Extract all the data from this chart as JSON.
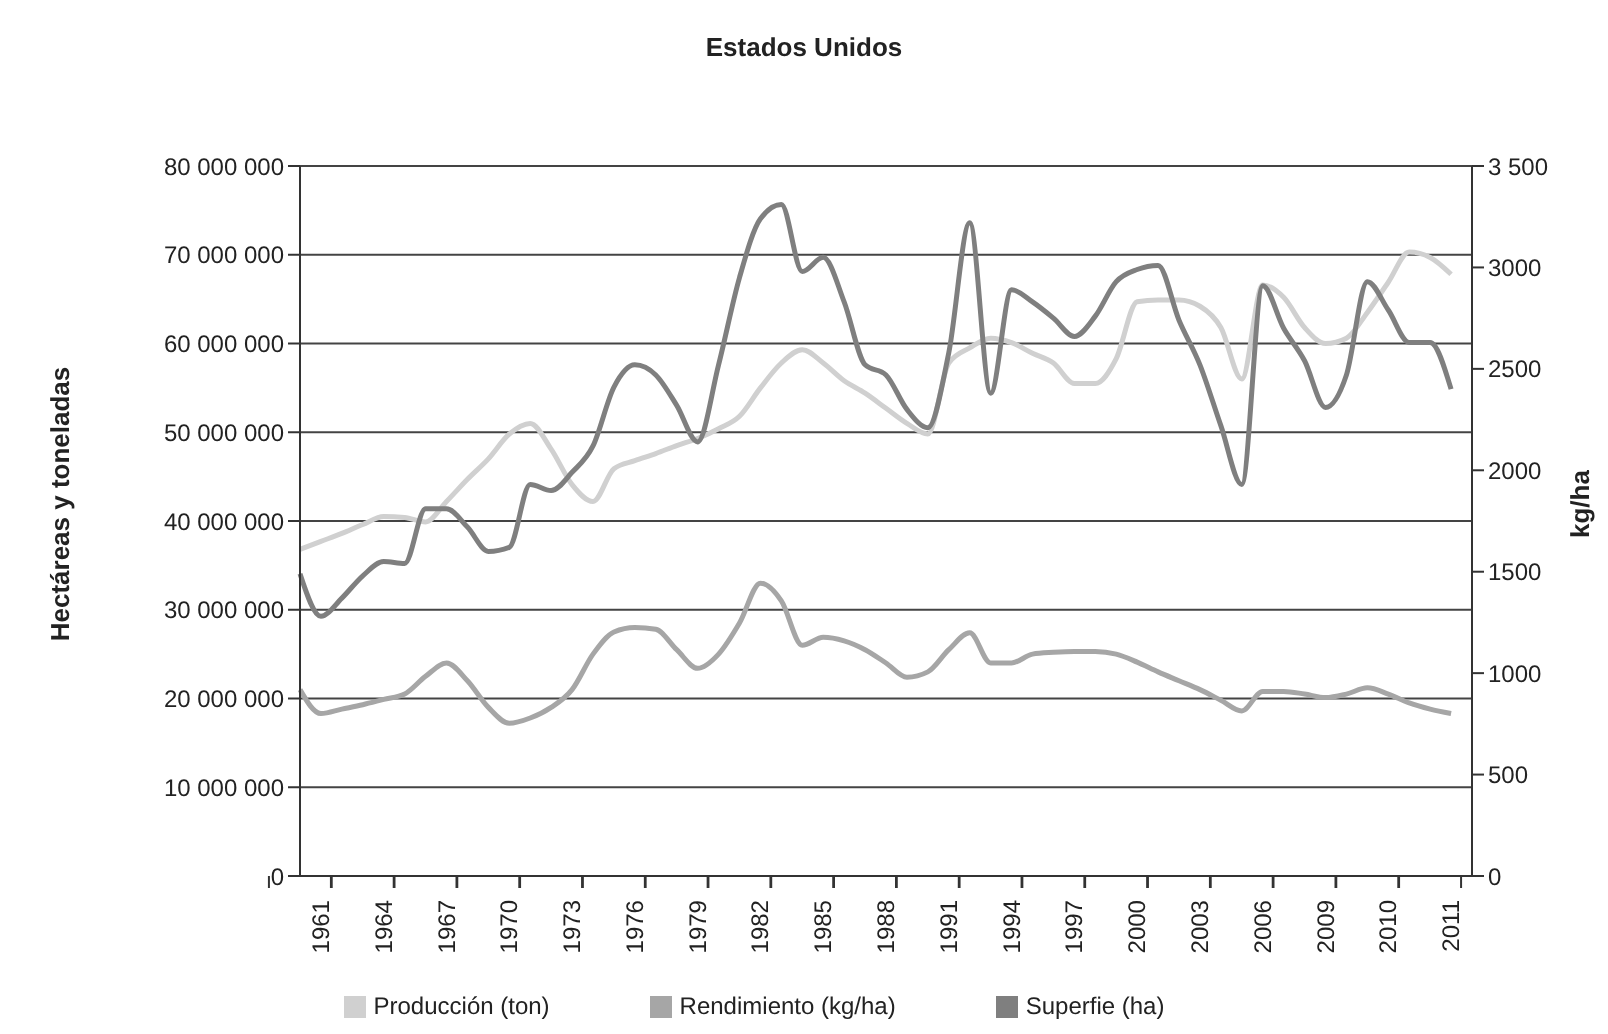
{
  "chart_data": {
    "type": "line",
    "title": "Estados Unidos",
    "ylabel": "Hectáreas y toneladas",
    "y2label": "kg/ha",
    "categories": [
      null,
      "1961",
      null,
      null,
      "1964",
      null,
      null,
      "1967",
      null,
      null,
      "1970",
      null,
      null,
      "1973",
      null,
      null,
      "1976",
      null,
      null,
      "1979",
      null,
      null,
      "1982",
      null,
      null,
      "1985",
      null,
      null,
      "1988",
      null,
      null,
      "1991",
      null,
      null,
      "1994",
      null,
      null,
      "1997",
      null,
      null,
      "2000",
      null,
      null,
      "2003",
      null,
      null,
      "2006",
      null,
      null,
      "2009",
      null,
      null,
      "2010",
      null,
      null,
      "2011",
      null
    ],
    "series": [
      {
        "name": "Producción (ton)",
        "color": "#d0d0d0",
        "values": [
          36800000,
          37700000,
          38600000,
          39600000,
          40500000,
          40400000,
          39900000,
          42200000,
          44700000,
          47000000,
          49800000,
          51000000,
          48100000,
          44100000,
          42200000,
          45900000,
          46800000,
          47600000,
          48500000,
          49300000,
          50400000,
          51800000,
          55000000,
          57800000,
          59300000,
          57800000,
          55800000,
          54400000,
          52700000,
          51000000,
          49800000,
          57800000,
          59500000,
          60600000,
          60100000,
          58900000,
          57800000,
          55500000,
          55500000,
          58300000,
          64700000,
          64900000,
          64900000,
          64200000,
          61800000,
          56000000,
          66600000,
          65200000,
          61800000,
          60000000,
          60600000,
          63500000,
          66900000,
          70300000,
          69700000,
          67800000,
          null
        ]
      },
      {
        "name": "Rendimiento (kg/ha)",
        "color": "#a6a6a6",
        "values": [
          21000000,
          18300000,
          18800000,
          19300000,
          19900000,
          20500000,
          22500000,
          24000000,
          22000000,
          19000000,
          17200000,
          17800000,
          19000000,
          21000000,
          25000000,
          27500000,
          28000000,
          27800000,
          25500000,
          23400000,
          25000000,
          28500000,
          33000000,
          31000000,
          26000000,
          26900000,
          26500000,
          25500000,
          24000000,
          22400000,
          23000000,
          25500000,
          27400000,
          24000000,
          24000000,
          25000000,
          25200000,
          25300000,
          25300000,
          25000000,
          24100000,
          23000000,
          22000000,
          21000000,
          19800000,
          18600000,
          20800000,
          20800000,
          20500000,
          20100000,
          20500000,
          21200000,
          20500000,
          19500000,
          18800000,
          18300000,
          null
        ]
      },
      {
        "name": "Superfie (ha)",
        "color": "#7f7f7f",
        "axis": "y2",
        "values": [
          1490,
          1280,
          1370,
          1480,
          1550,
          1540,
          1810,
          1810,
          1720,
          1600,
          1620,
          1930,
          1900,
          1990,
          2120,
          2410,
          2520,
          2470,
          2320,
          2140,
          2520,
          2950,
          3240,
          3310,
          2980,
          3050,
          2830,
          2520,
          2470,
          2300,
          2210,
          2580,
          3220,
          2380,
          2890,
          2830,
          2750,
          2660,
          2760,
          2930,
          2990,
          3010,
          2740,
          2520,
          2220,
          1930,
          2910,
          2700,
          2540,
          2310,
          2470,
          2930,
          2790,
          2630,
          2630,
          2400,
          null
        ]
      }
    ],
    "ylim": [
      0,
      80000000
    ],
    "yticks": [
      0,
      {
        "value": 10000000,
        "label": "10 000 000"
      },
      {
        "value": 20000000,
        "label": "20 000 000"
      },
      {
        "value": 30000000,
        "label": "30 000 000"
      },
      {
        "value": 40000000,
        "label": "40 000 000"
      },
      {
        "value": 50000000,
        "label": "50 000 000"
      },
      {
        "value": 60000000,
        "label": "60 000 000"
      },
      {
        "value": 70000000,
        "label": "70 000 000"
      },
      {
        "value": 80000000,
        "label": "80 000 000"
      }
    ],
    "y2lim": [
      0,
      3500
    ],
    "y2ticks": [
      0,
      500,
      1000,
      1500,
      2000,
      2500,
      3000,
      {
        "value": 3500,
        "label": "3 500"
      }
    ],
    "grid": "y",
    "legend": "bottom",
    "marker": "none",
    "line_style": "solid"
  }
}
